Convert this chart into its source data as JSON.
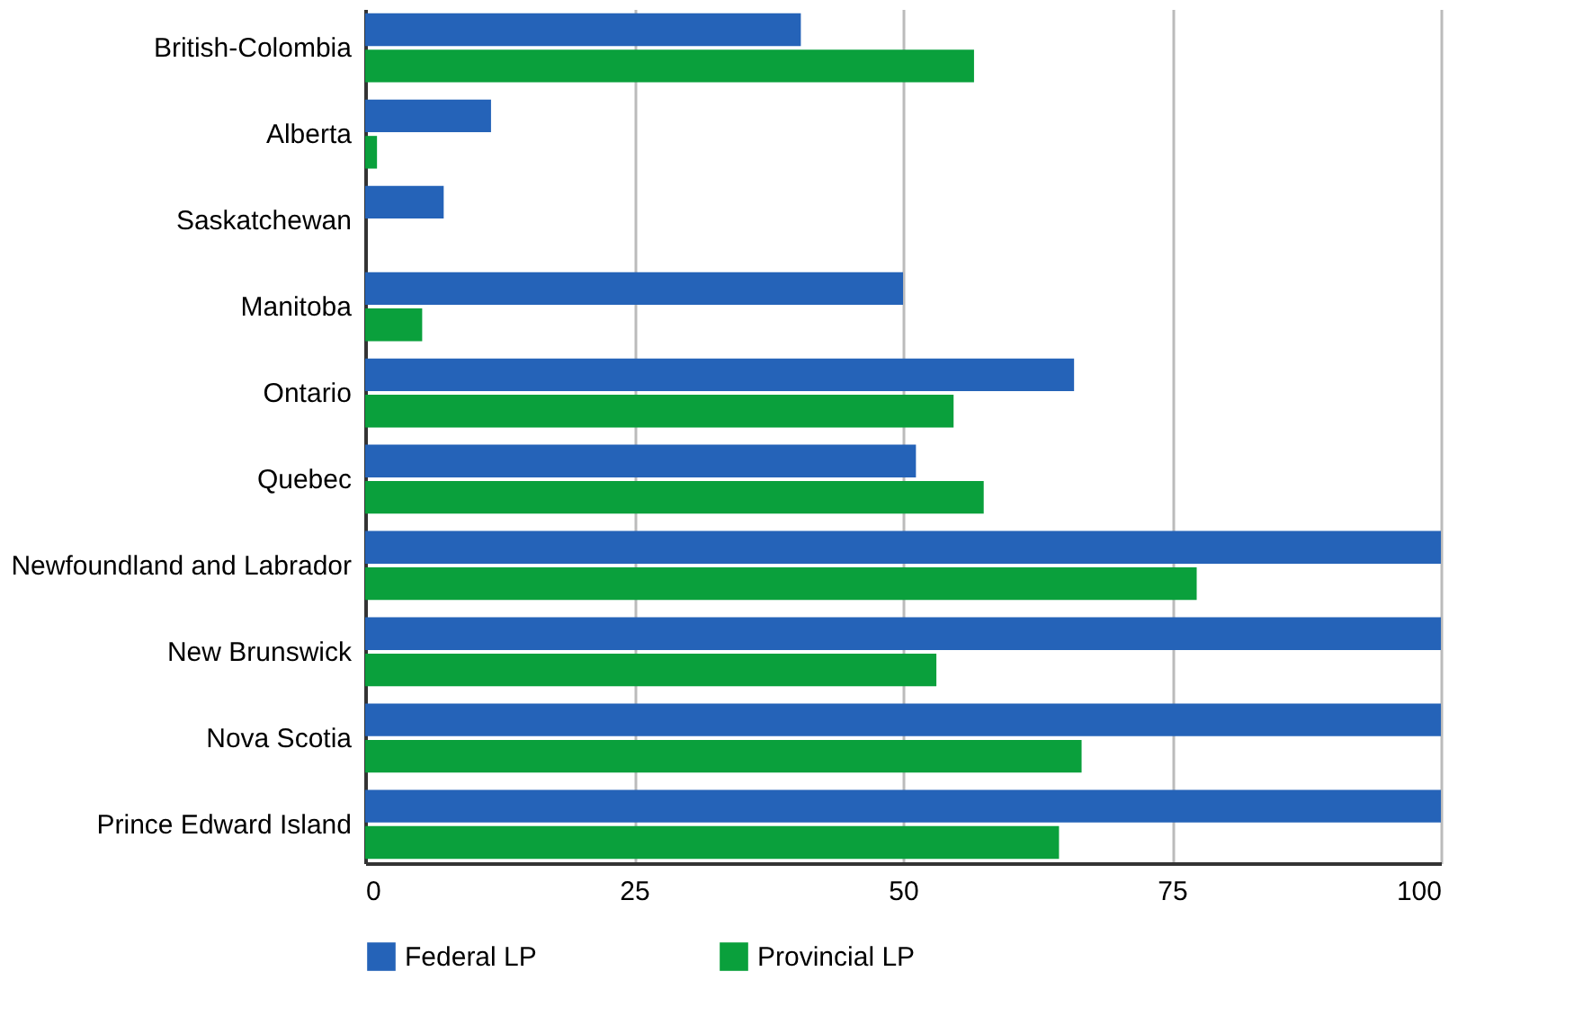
{
  "chart_data": {
    "type": "bar",
    "orientation": "horizontal",
    "categories": [
      "British-Colombia",
      "Alberta",
      "Saskatchewan",
      "Manitoba",
      "Ontario",
      "Quebec",
      "Newfoundland and Labrador",
      "New Brunswick",
      "Nova Scotia",
      "Prince Edward Island"
    ],
    "series": [
      {
        "name": "Federal LP",
        "color": "#2563b8",
        "values": [
          40.5,
          11.7,
          7.3,
          50,
          65.9,
          51.2,
          100,
          100,
          100,
          100
        ]
      },
      {
        "name": "Provincial LP",
        "color": "#0aa03c",
        "values": [
          56.6,
          1.1,
          0,
          5.3,
          54.7,
          57.5,
          77.3,
          53.1,
          66.6,
          64.5
        ]
      }
    ],
    "xlim": [
      0,
      100
    ],
    "xticks": [
      0,
      25,
      50,
      75,
      100
    ],
    "grid": "x",
    "legend": "bottom"
  }
}
